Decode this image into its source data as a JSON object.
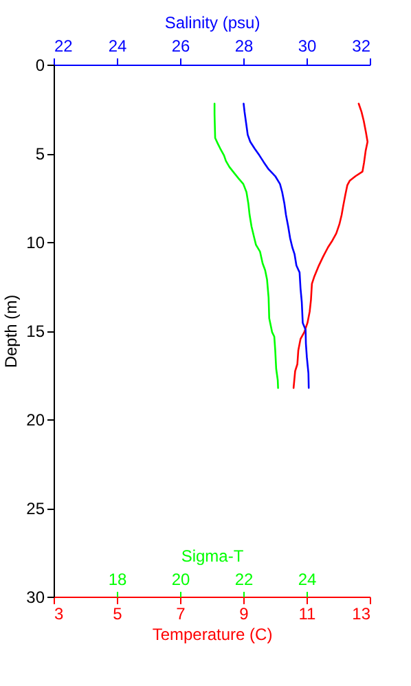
{
  "chart_data": [
    {
      "type": "line",
      "xlabel": "Temperature (C)",
      "x2label": "Salinity (psu)",
      "ylabel": "Depth (m)",
      "xlim": [
        3,
        13
      ],
      "xticks": [
        3,
        5,
        7,
        9,
        11,
        13
      ],
      "x2lim": [
        22,
        32
      ],
      "x2ticks": [
        22,
        24,
        26,
        28,
        30,
        32
      ],
      "ylim": [
        30,
        0
      ],
      "yticks": [
        0,
        5,
        10,
        15,
        20,
        25,
        30
      ],
      "marker": "none",
      "line_style": "solid",
      "series": [
        {
          "color": "#ff0000",
          "x": [
            12.65,
            12.74,
            12.81,
            12.88,
            12.93,
            12.87,
            12.82,
            12.77,
            12.55,
            12.37,
            12.29,
            12.23,
            12.16,
            12.11,
            12.04,
            11.94,
            11.82,
            11.68,
            11.53,
            11.39,
            11.24,
            11.17,
            11.14,
            11.1,
            11.03,
            10.93,
            10.81,
            10.74,
            10.71,
            10.64,
            10.59
          ],
          "values": [
            2.2,
            2.67,
            3.18,
            3.83,
            4.35,
            4.86,
            5.51,
            6.03,
            6.29,
            6.54,
            6.8,
            7.32,
            7.97,
            8.48,
            9.0,
            9.52,
            9.91,
            10.3,
            10.81,
            11.33,
            11.98,
            12.36,
            13.27,
            13.92,
            14.56,
            15.08,
            15.47,
            16.11,
            16.89,
            17.28,
            18.23
          ]
        },
        {
          "color": "#0000ff",
          "axis": "x2",
          "x": [
            28.01,
            28.04,
            28.1,
            28.14,
            28.22,
            28.36,
            28.51,
            28.65,
            28.8,
            29.01,
            29.16,
            29.23,
            29.3,
            29.35,
            29.42,
            29.48,
            29.55,
            29.62,
            29.68,
            29.78,
            29.81,
            29.85,
            29.88,
            29.97,
            29.98,
            30.01,
            30.06,
            30.07
          ],
          "values": [
            2.2,
            2.67,
            3.44,
            3.96,
            4.35,
            4.74,
            5.12,
            5.51,
            5.9,
            6.29,
            6.73,
            7.19,
            7.84,
            8.48,
            9.13,
            9.78,
            10.3,
            10.68,
            11.33,
            11.72,
            12.62,
            13.4,
            14.56,
            14.95,
            15.73,
            16.5,
            17.41,
            18.23
          ]
        }
      ]
    },
    {
      "type": "line",
      "xlabel": "Sigma-T",
      "xlim": [
        16,
        26
      ],
      "xticks": [
        18,
        20,
        22,
        24
      ],
      "ylim": [
        30,
        0
      ],
      "tick_labels": "x",
      "marker": "none",
      "line_style": "solid",
      "series": [
        {
          "color": "#00ff00",
          "x": [
            21.09,
            21.09,
            21.11,
            21.2,
            21.27,
            21.39,
            21.45,
            21.56,
            21.71,
            21.85,
            22.0,
            22.1,
            22.16,
            22.2,
            22.26,
            22.33,
            22.4,
            22.53,
            22.61,
            22.69,
            22.75,
            22.8,
            22.82,
            22.91,
            22.98,
            23.01,
            23.04,
            23.09,
            23.1
          ],
          "values": [
            2.2,
            2.8,
            4.14,
            4.48,
            4.73,
            5.12,
            5.43,
            5.77,
            6.11,
            6.42,
            6.73,
            7.19,
            7.84,
            8.48,
            9.13,
            9.65,
            10.16,
            10.55,
            11.2,
            11.59,
            12.11,
            13.14,
            14.3,
            15.08,
            15.34,
            16.11,
            17.15,
            17.8,
            18.23
          ]
        }
      ]
    }
  ]
}
